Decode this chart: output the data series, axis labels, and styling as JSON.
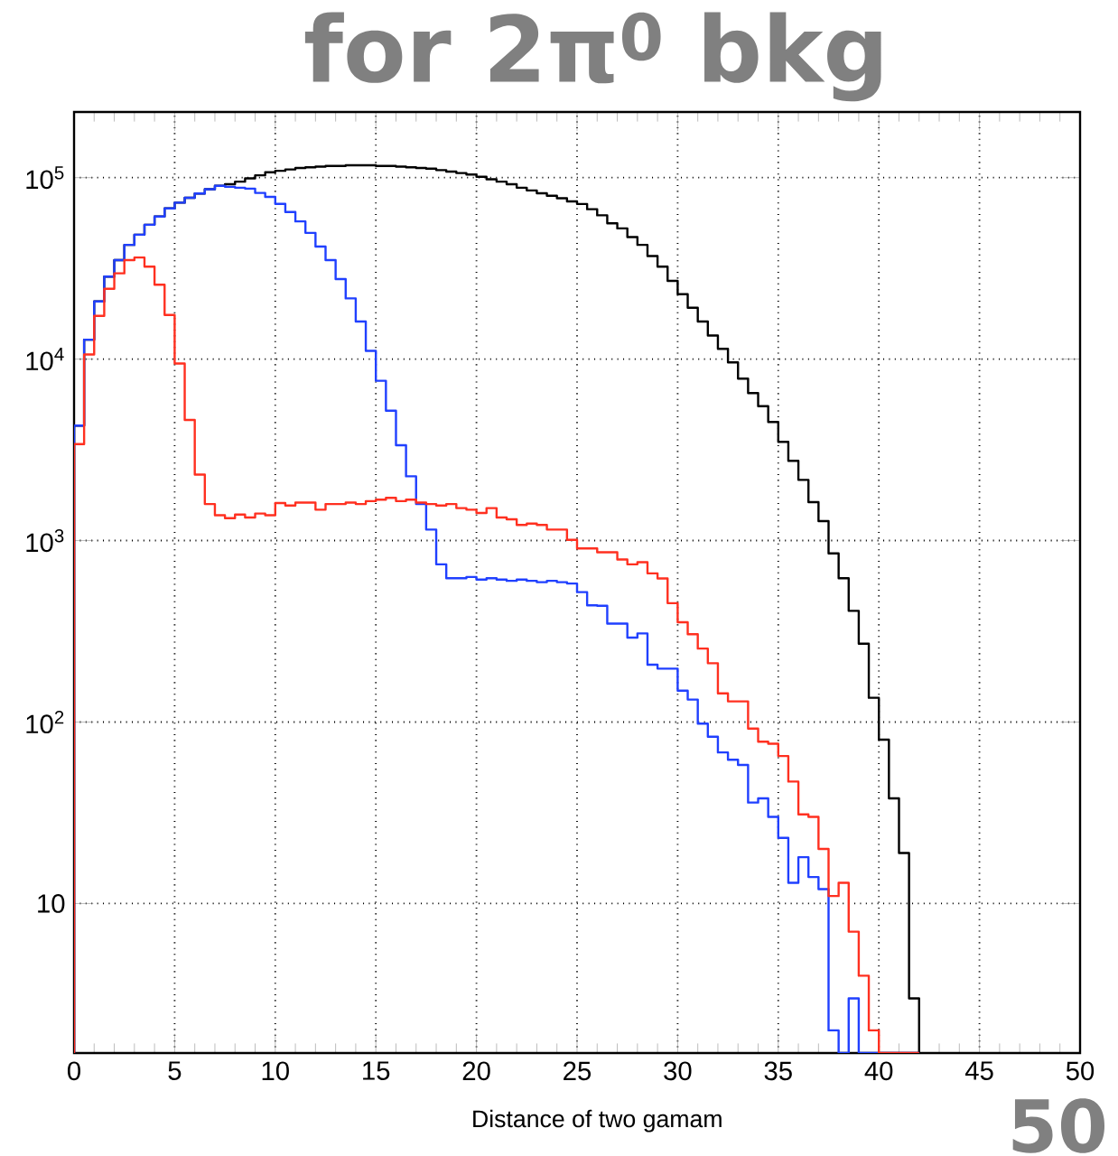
{
  "chart_data": {
    "type": "histogram",
    "title": "for 2π$^{0}$ bkg",
    "xlabel": "Distance of two gamam",
    "bins": [
      0,
      0.5,
      1,
      1.5,
      2,
      2.5,
      3,
      3.5,
      4,
      4.5,
      5,
      5.5,
      6,
      6.5,
      7,
      7.5,
      8,
      8.5,
      9,
      9.5,
      10,
      10.5,
      11,
      11.5,
      12,
      12.5,
      13,
      13.5,
      14,
      14.5,
      15,
      15.5,
      16,
      16.5,
      17,
      17.5,
      18,
      18.5,
      19,
      19.5,
      20,
      20.5,
      21,
      21.5,
      22,
      22.5,
      23,
      23.5,
      24,
      24.5,
      25,
      25.5,
      26,
      26.5,
      27,
      27.5,
      28,
      28.5,
      29,
      29.5,
      30,
      30.5,
      31,
      31.5,
      32,
      32.5,
      33,
      33.5,
      34,
      34.5,
      35,
      35.5,
      36,
      36.5,
      37,
      37.5,
      38,
      38.5,
      39,
      39.5,
      40,
      40.5,
      41,
      41.5,
      42
    ],
    "series": [
      {
        "color": "#000000",
        "values": [
          4300,
          12800,
          20800,
          28500,
          35100,
          42600,
          48500,
          55000,
          61100,
          67700,
          72800,
          77400,
          81700,
          86400,
          90100,
          92000,
          95000,
          99000,
          103000,
          107000,
          109000,
          111000,
          113000,
          114000,
          115000,
          116000,
          116000,
          117000,
          117000,
          117000,
          116000,
          116000,
          115000,
          114000,
          113000,
          112000,
          110000,
          108000,
          106000,
          104000,
          101000,
          98000,
          95000,
          92000,
          88000,
          85000,
          82000,
          79500,
          77000,
          74000,
          71600,
          67000,
          62000,
          56000,
          52500,
          47000,
          42600,
          37000,
          32300,
          27000,
          22800,
          19200,
          16100,
          13500,
          11400,
          9600,
          7800,
          6500,
          5500,
          4500,
          3500,
          2750,
          2160,
          1630,
          1280,
          850,
          620,
          410,
          270,
          136,
          80,
          38,
          19,
          3
        ]
      },
      {
        "color": "#2040ff",
        "values": [
          4300,
          12800,
          20800,
          28500,
          35100,
          42600,
          48500,
          55000,
          61100,
          67700,
          72800,
          77400,
          81700,
          86400,
          90100,
          89000,
          88000,
          87000,
          82400,
          78400,
          71700,
          64600,
          57400,
          49600,
          41700,
          35100,
          27600,
          21600,
          16100,
          11100,
          7600,
          5200,
          3350,
          2260,
          1590,
          1150,
          740,
          620,
          620,
          630,
          610,
          620,
          610,
          600,
          610,
          600,
          590,
          600,
          590,
          580,
          520,
          440,
          437,
          349,
          349,
          292,
          308,
          207,
          197,
          197,
          149,
          133,
          98,
          83,
          68,
          62,
          58,
          36,
          38,
          30,
          23,
          13,
          18,
          14,
          12,
          2,
          null,
          3,
          null,
          null,
          null,
          null,
          null,
          null
        ]
      },
      {
        "color": "#ff3020",
        "values": [
          3400,
          10600,
          17300,
          24400,
          29700,
          35100,
          36300,
          32300,
          25700,
          17500,
          9460,
          4620,
          2310,
          1590,
          1380,
          1330,
          1390,
          1340,
          1410,
          1380,
          1610,
          1560,
          1620,
          1620,
          1480,
          1590,
          1590,
          1620,
          1590,
          1650,
          1680,
          1720,
          1650,
          1680,
          1620,
          1590,
          1560,
          1590,
          1510,
          1480,
          1420,
          1510,
          1340,
          1310,
          1220,
          1240,
          1220,
          1150,
          1150,
          1010,
          906,
          906,
          863,
          863,
          787,
          740,
          760,
          660,
          618,
          452,
          355,
          305,
          254,
          211,
          144,
          130,
          130,
          92,
          78,
          76,
          65,
          47,
          31,
          30,
          20,
          11,
          13,
          7,
          4,
          2,
          null,
          null,
          null,
          null
        ]
      }
    ],
    "xlim": [
      0,
      50
    ],
    "xticks": [
      0,
      5,
      10,
      15,
      20,
      25,
      30,
      35,
      40,
      45,
      50
    ],
    "ylim": [
      1.5,
      230000
    ],
    "log": true,
    "yticks": [
      10,
      {
        "value": 100,
        "label": "10$^{2}$"
      },
      {
        "value": 1000,
        "label": "10$^{3}$"
      },
      {
        "value": 10000,
        "label": "10$^{4}$"
      },
      {
        "value": 100000,
        "label": "10$^{5}$"
      }
    ],
    "grid": true,
    "annotations": [
      "50"
    ]
  }
}
